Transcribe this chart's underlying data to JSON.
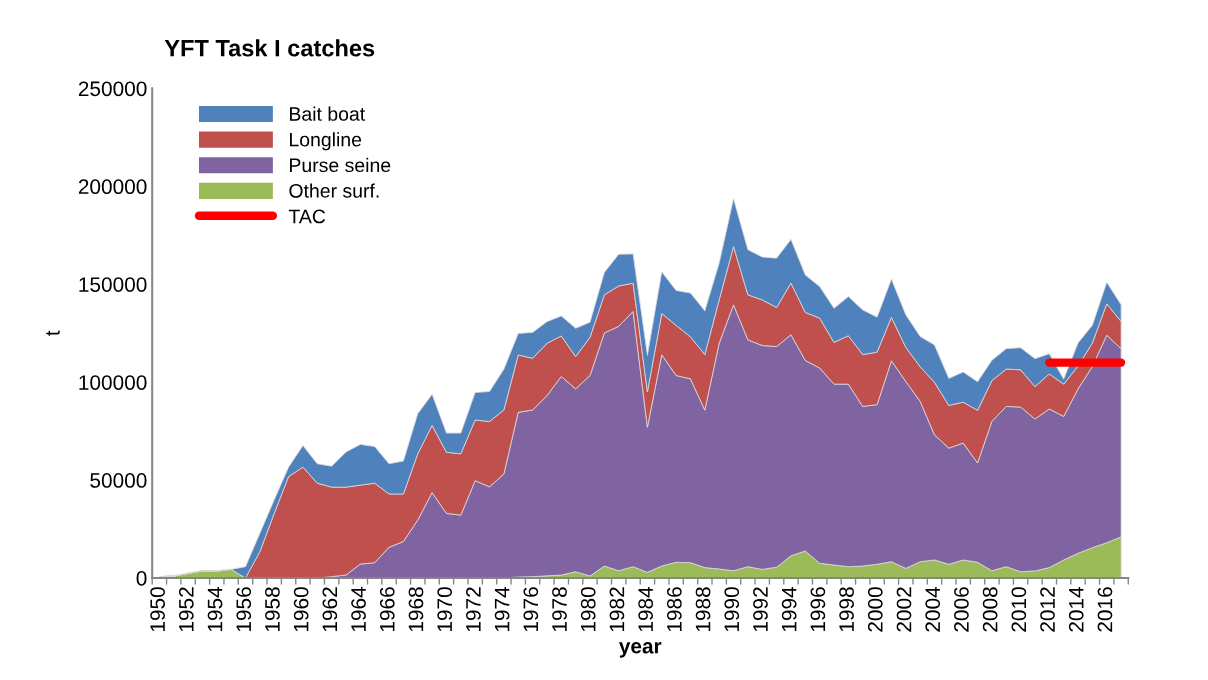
{
  "chart_data": {
    "type": "area",
    "stacked": true,
    "title": "YFT Task I catches",
    "xlabel": "year",
    "ylabel": "t",
    "categories": [
      "1950",
      null,
      "1952",
      null,
      "1954",
      null,
      "1956",
      null,
      "1958",
      null,
      "1960",
      null,
      "1962",
      null,
      "1964",
      null,
      "1966",
      null,
      "1968",
      null,
      "1970",
      null,
      "1972",
      null,
      "1974",
      null,
      "1976",
      null,
      "1978",
      null,
      "1980",
      null,
      "1982",
      null,
      "1984",
      null,
      "1986",
      null,
      "1988",
      null,
      "1990",
      null,
      "1992",
      null,
      "1994",
      null,
      "1996",
      null,
      "1998",
      null,
      "2000",
      null,
      "2002",
      null,
      "2004",
      null,
      "2006",
      null,
      "2008",
      null,
      "2010",
      null,
      "2012",
      null,
      "2014",
      null,
      "2016",
      null
    ],
    "series": [
      {
        "name": "Other surf.",
        "color": "#9bbb59",
        "values": [
          700,
          1000,
          2400,
          3700,
          3600,
          4400,
          0,
          0,
          0,
          0,
          0,
          0,
          0,
          0,
          0,
          0,
          0,
          0,
          0,
          0,
          0,
          0,
          0,
          0,
          0,
          500,
          700,
          1100,
          1500,
          3200,
          1000,
          6100,
          3700,
          5800,
          2900,
          6100,
          8000,
          7800,
          5300,
          4600,
          3700,
          5800,
          4400,
          5500,
          11300,
          13800,
          7500,
          6600,
          5800,
          6100,
          7000,
          8300,
          4900,
          8300,
          9200,
          7000,
          9200,
          8000,
          3700,
          5800,
          3200,
          3600,
          5300,
          9200,
          12600,
          15500,
          18000,
          21000
        ]
      },
      {
        "name": "Purse seine",
        "color": "#8064a2",
        "values": [
          0,
          0,
          0,
          0,
          0,
          0,
          0,
          0,
          0,
          0,
          0,
          0,
          700,
          1500,
          7100,
          7800,
          15700,
          18600,
          29600,
          43600,
          33000,
          32100,
          49700,
          46600,
          53100,
          84100,
          85100,
          92000,
          101400,
          93400,
          102400,
          119000,
          124800,
          130300,
          74100,
          107900,
          95400,
          93900,
          80400,
          115300,
          135800,
          115800,
          114300,
          112700,
          112900,
          97300,
          99700,
          92400,
          93200,
          81500,
          81500,
          102600,
          95500,
          81900,
          63900,
          59300,
          59700,
          50700,
          76300,
          81800,
          84100,
          77600,
          81000,
          73300,
          83900,
          92500,
          106000,
          96000
        ]
      },
      {
        "name": "Longline",
        "color": "#c0504d",
        "values": [
          0,
          0,
          0,
          0,
          0,
          0,
          0,
          13400,
          33000,
          51800,
          56600,
          48400,
          45700,
          44900,
          40300,
          40600,
          27200,
          24300,
          33800,
          34300,
          31200,
          31300,
          31000,
          33300,
          32700,
          29300,
          26400,
          26700,
          20700,
          16400,
          19500,
          19500,
          20600,
          14400,
          18000,
          21000,
          25600,
          21400,
          28400,
          22100,
          29700,
          23000,
          23300,
          19900,
          26400,
          24500,
          25500,
          21300,
          24700,
          26500,
          26800,
          22200,
          17400,
          17700,
          26800,
          21800,
          20900,
          26900,
          20800,
          19100,
          19000,
          16500,
          17900,
          16500,
          11700,
          12000,
          16000,
          14000
        ]
      },
      {
        "name": "Bait boat",
        "color": "#4f81bd",
        "values": [
          0,
          0,
          0,
          0,
          0,
          0,
          5800,
          9400,
          6900,
          4800,
          11000,
          9900,
          10700,
          17900,
          20800,
          18700,
          15400,
          16800,
          20500,
          15900,
          9800,
          10600,
          14000,
          15300,
          20800,
          11000,
          13200,
          11100,
          10200,
          14500,
          7700,
          11400,
          16200,
          15000,
          18700,
          21300,
          17800,
          22400,
          22300,
          18800,
          24500,
          23000,
          21900,
          25200,
          22300,
          19100,
          16100,
          17400,
          20000,
          22800,
          17900,
          19500,
          16600,
          15400,
          19100,
          13800,
          15400,
          14600,
          10400,
          10400,
          11300,
          14300,
          10300,
          2500,
          11800,
          9000,
          11000,
          8500
        ]
      },
      {
        "name": "TAC",
        "type": "line",
        "color": "#ff0000",
        "line_style": "solid",
        "values": [
          null,
          null,
          null,
          null,
          null,
          null,
          null,
          null,
          null,
          null,
          null,
          null,
          null,
          null,
          null,
          null,
          null,
          null,
          null,
          null,
          null,
          null,
          null,
          null,
          null,
          null,
          null,
          null,
          null,
          null,
          null,
          null,
          null,
          null,
          null,
          null,
          null,
          null,
          null,
          null,
          null,
          null,
          null,
          null,
          null,
          null,
          null,
          null,
          null,
          null,
          null,
          null,
          null,
          null,
          null,
          null,
          null,
          null,
          null,
          null,
          null,
          null,
          110000,
          110000,
          110000,
          110000,
          110000,
          110000
        ]
      }
    ],
    "ylim": [
      0,
      250000
    ],
    "yticks": [
      0,
      50000,
      100000,
      150000,
      200000,
      250000
    ],
    "grid": false,
    "legend": "top left"
  }
}
